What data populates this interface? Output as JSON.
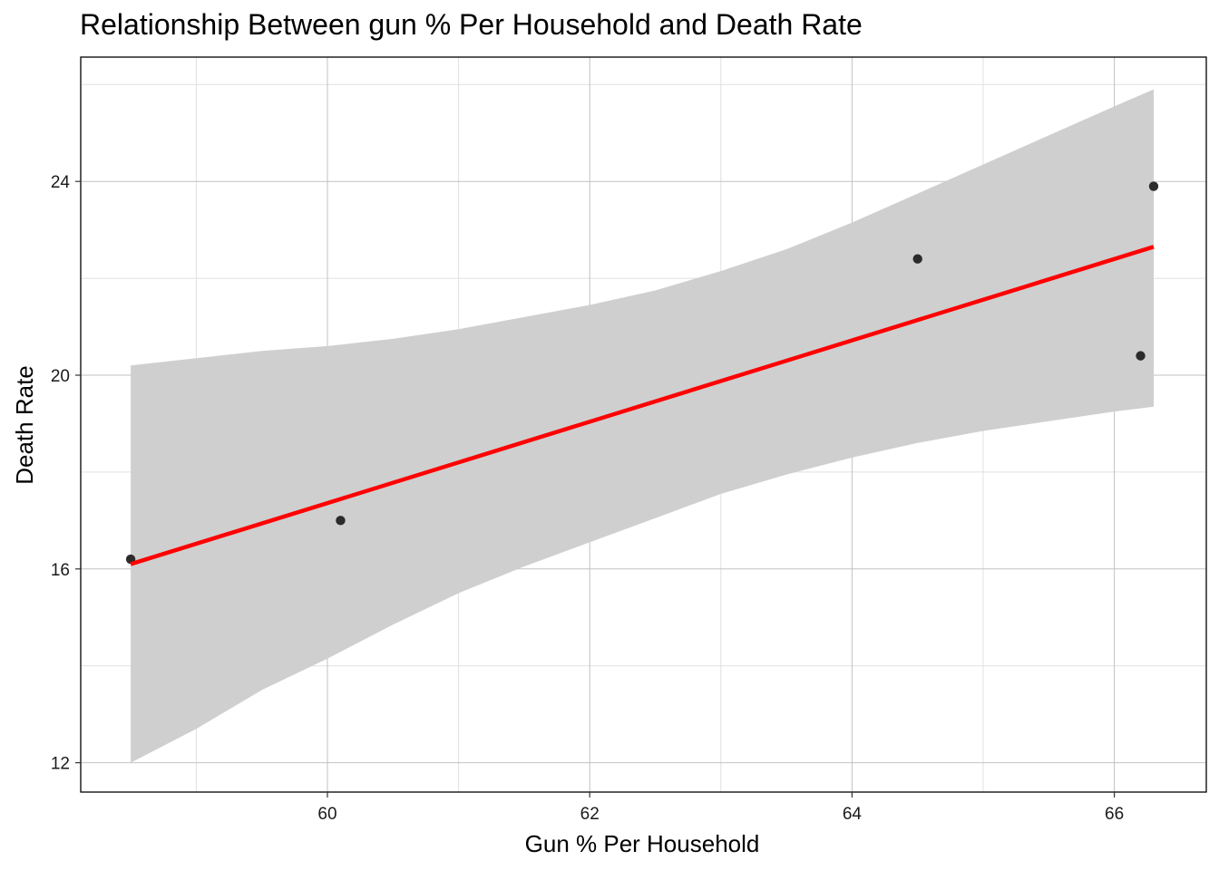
{
  "chart_data": {
    "type": "scatter",
    "title": "Relationship Between gun % Per Household and Death Rate",
    "xlabel": "Gun % Per Household",
    "ylabel": "Death Rate",
    "xlim": [
      58.12,
      66.72
    ],
    "ylim": [
      11.4,
      26.7
    ],
    "x_ticks": [
      60,
      62,
      64,
      66
    ],
    "y_ticks": [
      12,
      16,
      20,
      24
    ],
    "x_tick_labels": [
      "60",
      "62",
      "64",
      "66"
    ],
    "y_tick_labels": [
      "12",
      "16",
      "20",
      "24"
    ],
    "grid": true,
    "series": [
      {
        "type": "points",
        "x": [
          58.5,
          60.1,
          64.5,
          66.2,
          66.3
        ],
        "y": [
          16.2,
          17.0,
          22.4,
          20.4,
          23.9
        ]
      }
    ],
    "trend_line": {
      "color": "#ff0000",
      "x": [
        58.5,
        66.3
      ],
      "y": [
        16.1,
        22.65
      ]
    },
    "confidence_band": {
      "color": "#cfcfcf",
      "x": [
        58.5,
        59,
        59.5,
        60,
        60.5,
        61,
        61.5,
        62,
        62.5,
        63,
        63.5,
        64,
        64.5,
        65,
        65.5,
        66,
        66.3
      ],
      "lower": [
        12.0,
        12.7,
        13.5,
        14.15,
        14.85,
        15.5,
        16.05,
        16.55,
        17.05,
        17.55,
        17.95,
        18.3,
        18.6,
        18.85,
        19.05,
        19.25,
        19.35
      ],
      "upper": [
        20.2,
        20.35,
        20.5,
        20.6,
        20.75,
        20.95,
        21.2,
        21.45,
        21.75,
        22.15,
        22.6,
        23.15,
        23.75,
        24.35,
        24.95,
        25.55,
        25.9
      ]
    }
  }
}
